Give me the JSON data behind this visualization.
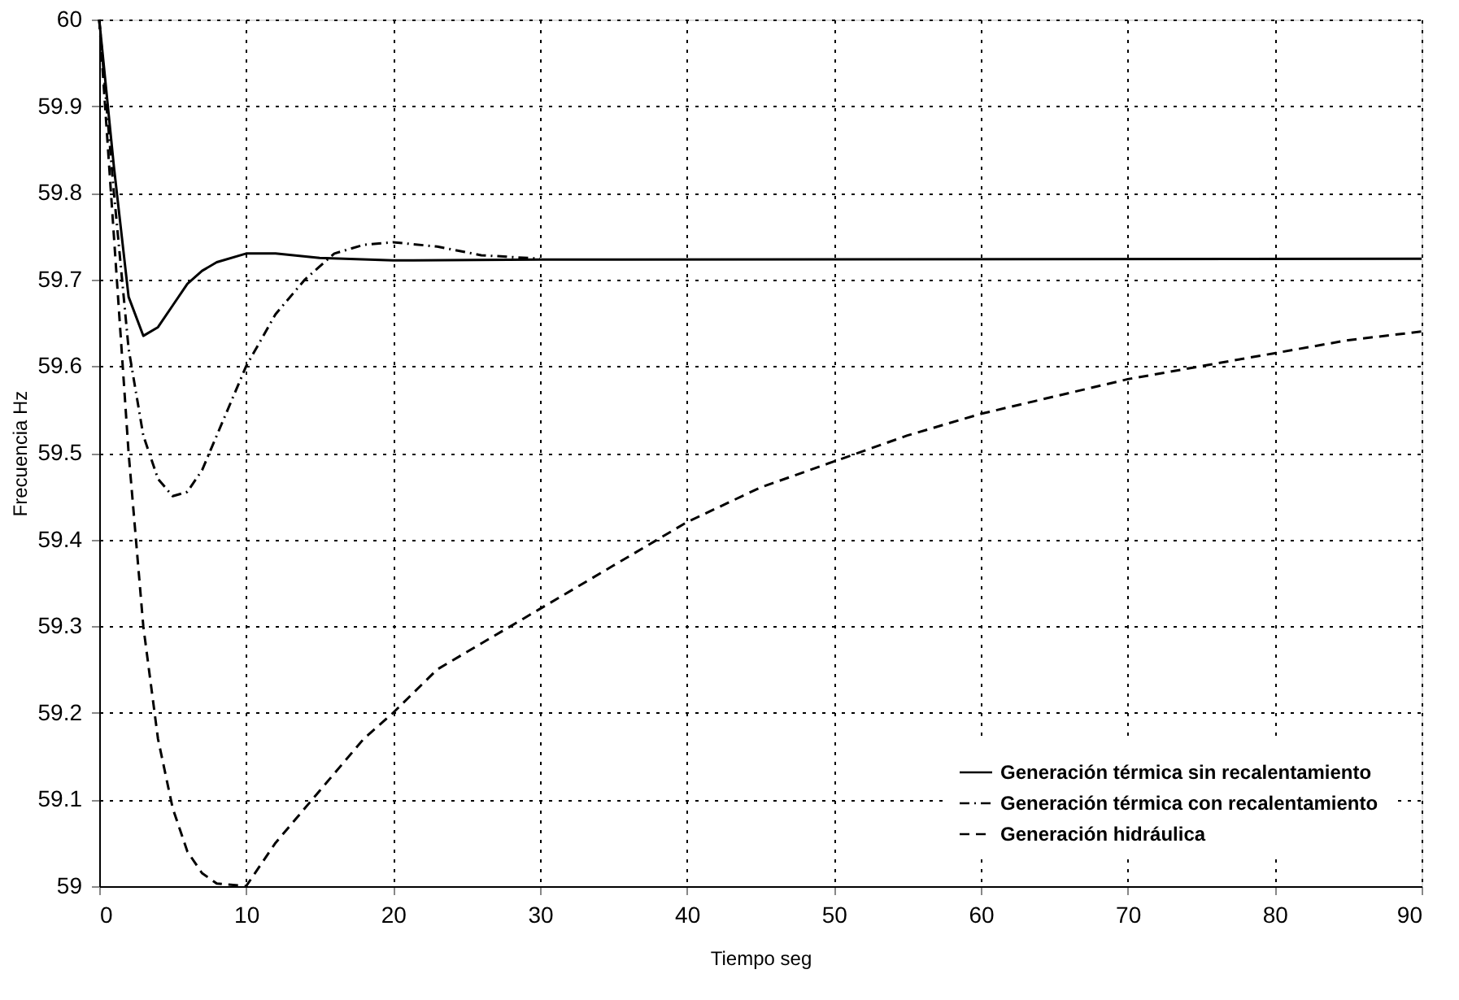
{
  "chart_data": {
    "type": "line",
    "xlabel": "Tiempo  seg",
    "ylabel": "Frecuencia  Hz",
    "xlim": [
      0,
      90
    ],
    "xticks": [
      0,
      10,
      20,
      30,
      40,
      50,
      60,
      70,
      80,
      90
    ],
    "ylim": [
      59,
      60
    ],
    "yticks": [
      59,
      59.1,
      59.2,
      59.3,
      59.4,
      59.5,
      59.6,
      59.7,
      59.8,
      59.9,
      60
    ],
    "grid": true,
    "legend": "bottom right",
    "marker": "none",
    "series": [
      {
        "name": "Generación térmica sin recalentamiento",
        "color": "#000000",
        "line_style": "solid",
        "x": [
          0,
          1,
          2,
          3,
          4,
          5,
          6,
          7,
          8,
          10,
          12,
          15,
          20,
          30,
          90
        ],
        "values": [
          60,
          59.83,
          59.68,
          59.635,
          59.645,
          59.67,
          59.695,
          59.71,
          59.72,
          59.73,
          59.73,
          59.725,
          59.722,
          59.723,
          59.724
        ]
      },
      {
        "name": "Generación térmica con recalentamiento",
        "color": "#000000",
        "line_style": "dashdot",
        "x": [
          0,
          1,
          2,
          3,
          4,
          5,
          6,
          7,
          8,
          9,
          10,
          12,
          14,
          16,
          18,
          20,
          23,
          26,
          30
        ],
        "values": [
          60,
          59.8,
          59.62,
          59.52,
          59.47,
          59.45,
          59.455,
          59.48,
          59.52,
          59.56,
          59.6,
          59.66,
          59.7,
          59.73,
          59.74,
          59.743,
          59.738,
          59.728,
          59.724
        ]
      },
      {
        "name": "Generación hidráulica",
        "color": "#000000",
        "line_style": "dashed",
        "x": [
          0,
          1,
          2,
          3,
          4,
          5,
          6,
          7,
          8,
          10,
          12,
          15,
          18,
          20,
          23,
          26,
          30,
          35,
          40,
          45,
          50,
          55,
          60,
          65,
          70,
          75,
          80,
          85,
          90
        ],
        "values": [
          60,
          59.75,
          59.5,
          59.3,
          59.17,
          59.09,
          59.04,
          59.015,
          59.003,
          59.0,
          59.05,
          59.11,
          59.17,
          59.2,
          59.25,
          59.28,
          59.32,
          59.37,
          59.42,
          59.46,
          59.49,
          59.52,
          59.545,
          59.565,
          59.585,
          59.6,
          59.615,
          59.63,
          59.64
        ]
      }
    ]
  }
}
